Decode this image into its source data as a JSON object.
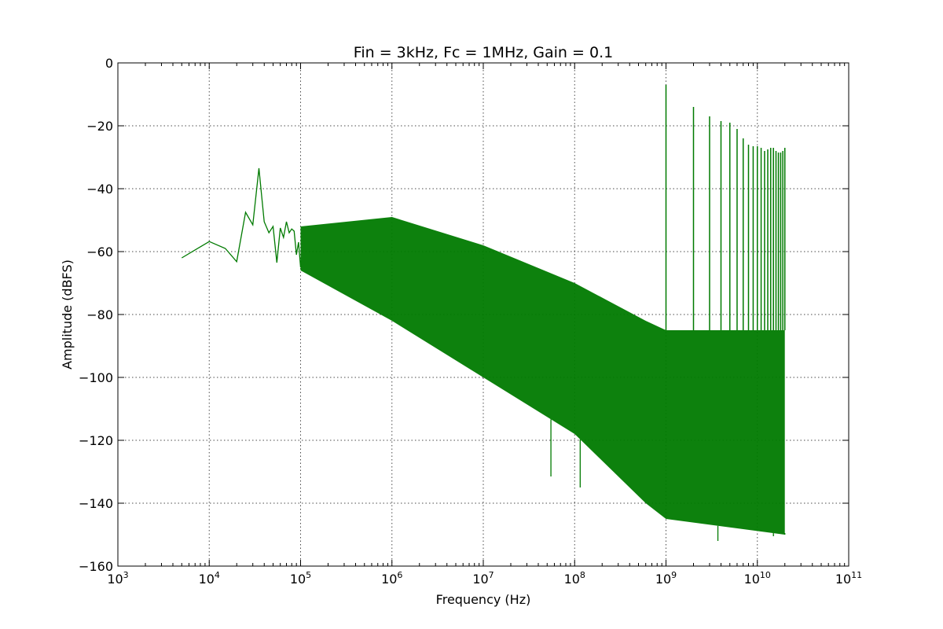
{
  "chart_data": {
    "type": "line",
    "title": "Fin = 3kHz, Fc = 1MHz, Gain = 0.1",
    "xlabel": "Frequency (Hz)",
    "ylabel": "Amplitude (dBFS)",
    "x_scale": "log",
    "xlim": [
      1000,
      100000000000
    ],
    "ylim": [
      -160,
      0
    ],
    "grid": true,
    "x_ticks": [
      {
        "value": 1000,
        "base": "10",
        "exp": "3"
      },
      {
        "value": 10000,
        "base": "10",
        "exp": "4"
      },
      {
        "value": 100000,
        "base": "10",
        "exp": "5"
      },
      {
        "value": 1000000,
        "base": "10",
        "exp": "6"
      },
      {
        "value": 10000000,
        "base": "10",
        "exp": "7"
      },
      {
        "value": 100000000,
        "base": "10",
        "exp": "8"
      },
      {
        "value": 1000000000,
        "base": "10",
        "exp": "9"
      },
      {
        "value": 10000000000,
        "base": "10",
        "exp": "10"
      },
      {
        "value": 100000000000,
        "base": "10",
        "exp": "11"
      }
    ],
    "y_ticks": [
      {
        "value": 0,
        "label": "0"
      },
      {
        "value": -20,
        "label": "−20"
      },
      {
        "value": -40,
        "label": "−40"
      },
      {
        "value": -60,
        "label": "−60"
      },
      {
        "value": -80,
        "label": "−80"
      },
      {
        "value": -100,
        "label": "−100"
      },
      {
        "value": -120,
        "label": "−120"
      },
      {
        "value": -140,
        "label": "−140"
      },
      {
        "value": -160,
        "label": "−160"
      }
    ],
    "series_color": "#007a00",
    "low_freq_points": [
      [
        5000,
        -62
      ],
      [
        10000,
        -56.8
      ],
      [
        15000,
        -59
      ],
      [
        20000,
        -63.2
      ],
      [
        25000,
        -47.5
      ],
      [
        30000,
        -51.5
      ],
      [
        35000,
        -33.5
      ],
      [
        40000,
        -50.5
      ],
      [
        45000,
        -54
      ],
      [
        50000,
        -52
      ],
      [
        55000,
        -63.5
      ],
      [
        60000,
        -52.5
      ],
      [
        65000,
        -55.5
      ],
      [
        70000,
        -50.5
      ],
      [
        75000,
        -54
      ],
      [
        80000,
        -52.8
      ],
      [
        85000,
        -53.5
      ],
      [
        90000,
        -61
      ],
      [
        95000,
        -57
      ],
      [
        100000,
        -65
      ]
    ],
    "envelope": [
      {
        "freq": 100000,
        "upper": -52,
        "lower": -66
      },
      {
        "freq": 1000000,
        "upper": -49,
        "lower": -82
      },
      {
        "freq": 10000000,
        "upper": -58,
        "lower": -100
      },
      {
        "freq": 100000000,
        "upper": -70,
        "lower": -118
      },
      {
        "freq": 600000000,
        "upper": -82,
        "lower": -140
      },
      {
        "freq": 1000000000,
        "upper": -85,
        "lower": -145
      },
      {
        "freq": 20000000000,
        "upper": -85,
        "lower": -150
      }
    ],
    "deep_dips": [
      {
        "freq": 55000000,
        "value": -131.5
      },
      {
        "freq": 115000000,
        "value": -135
      },
      {
        "freq": 3700000000,
        "value": -152
      },
      {
        "freq": 15000000000,
        "value": -150.5
      },
      {
        "freq": 20000000000,
        "value": -149.5
      }
    ],
    "harmonic_peaks": [
      {
        "freq": 1000000000,
        "value": -7
      },
      {
        "freq": 2000000000,
        "value": -14
      },
      {
        "freq": 3000000000,
        "value": -17
      },
      {
        "freq": 4000000000,
        "value": -18.5
      },
      {
        "freq": 5000000000,
        "value": -19
      },
      {
        "freq": 6000000000,
        "value": -21
      },
      {
        "freq": 7000000000,
        "value": -24
      },
      {
        "freq": 8000000000,
        "value": -26
      },
      {
        "freq": 9000000000,
        "value": -26.5
      },
      {
        "freq": 10000000000,
        "value": -26.5
      },
      {
        "freq": 11000000000,
        "value": -27
      },
      {
        "freq": 12000000000,
        "value": -28
      },
      {
        "freq": 13000000000,
        "value": -27.5
      },
      {
        "freq": 14000000000,
        "value": -27
      },
      {
        "freq": 15000000000,
        "value": -27
      },
      {
        "freq": 16000000000,
        "value": -28
      },
      {
        "freq": 17000000000,
        "value": -28.5
      },
      {
        "freq": 18000000000,
        "value": -28.5
      },
      {
        "freq": 19000000000,
        "value": -28
      },
      {
        "freq": 20000000000,
        "value": -27
      }
    ]
  }
}
